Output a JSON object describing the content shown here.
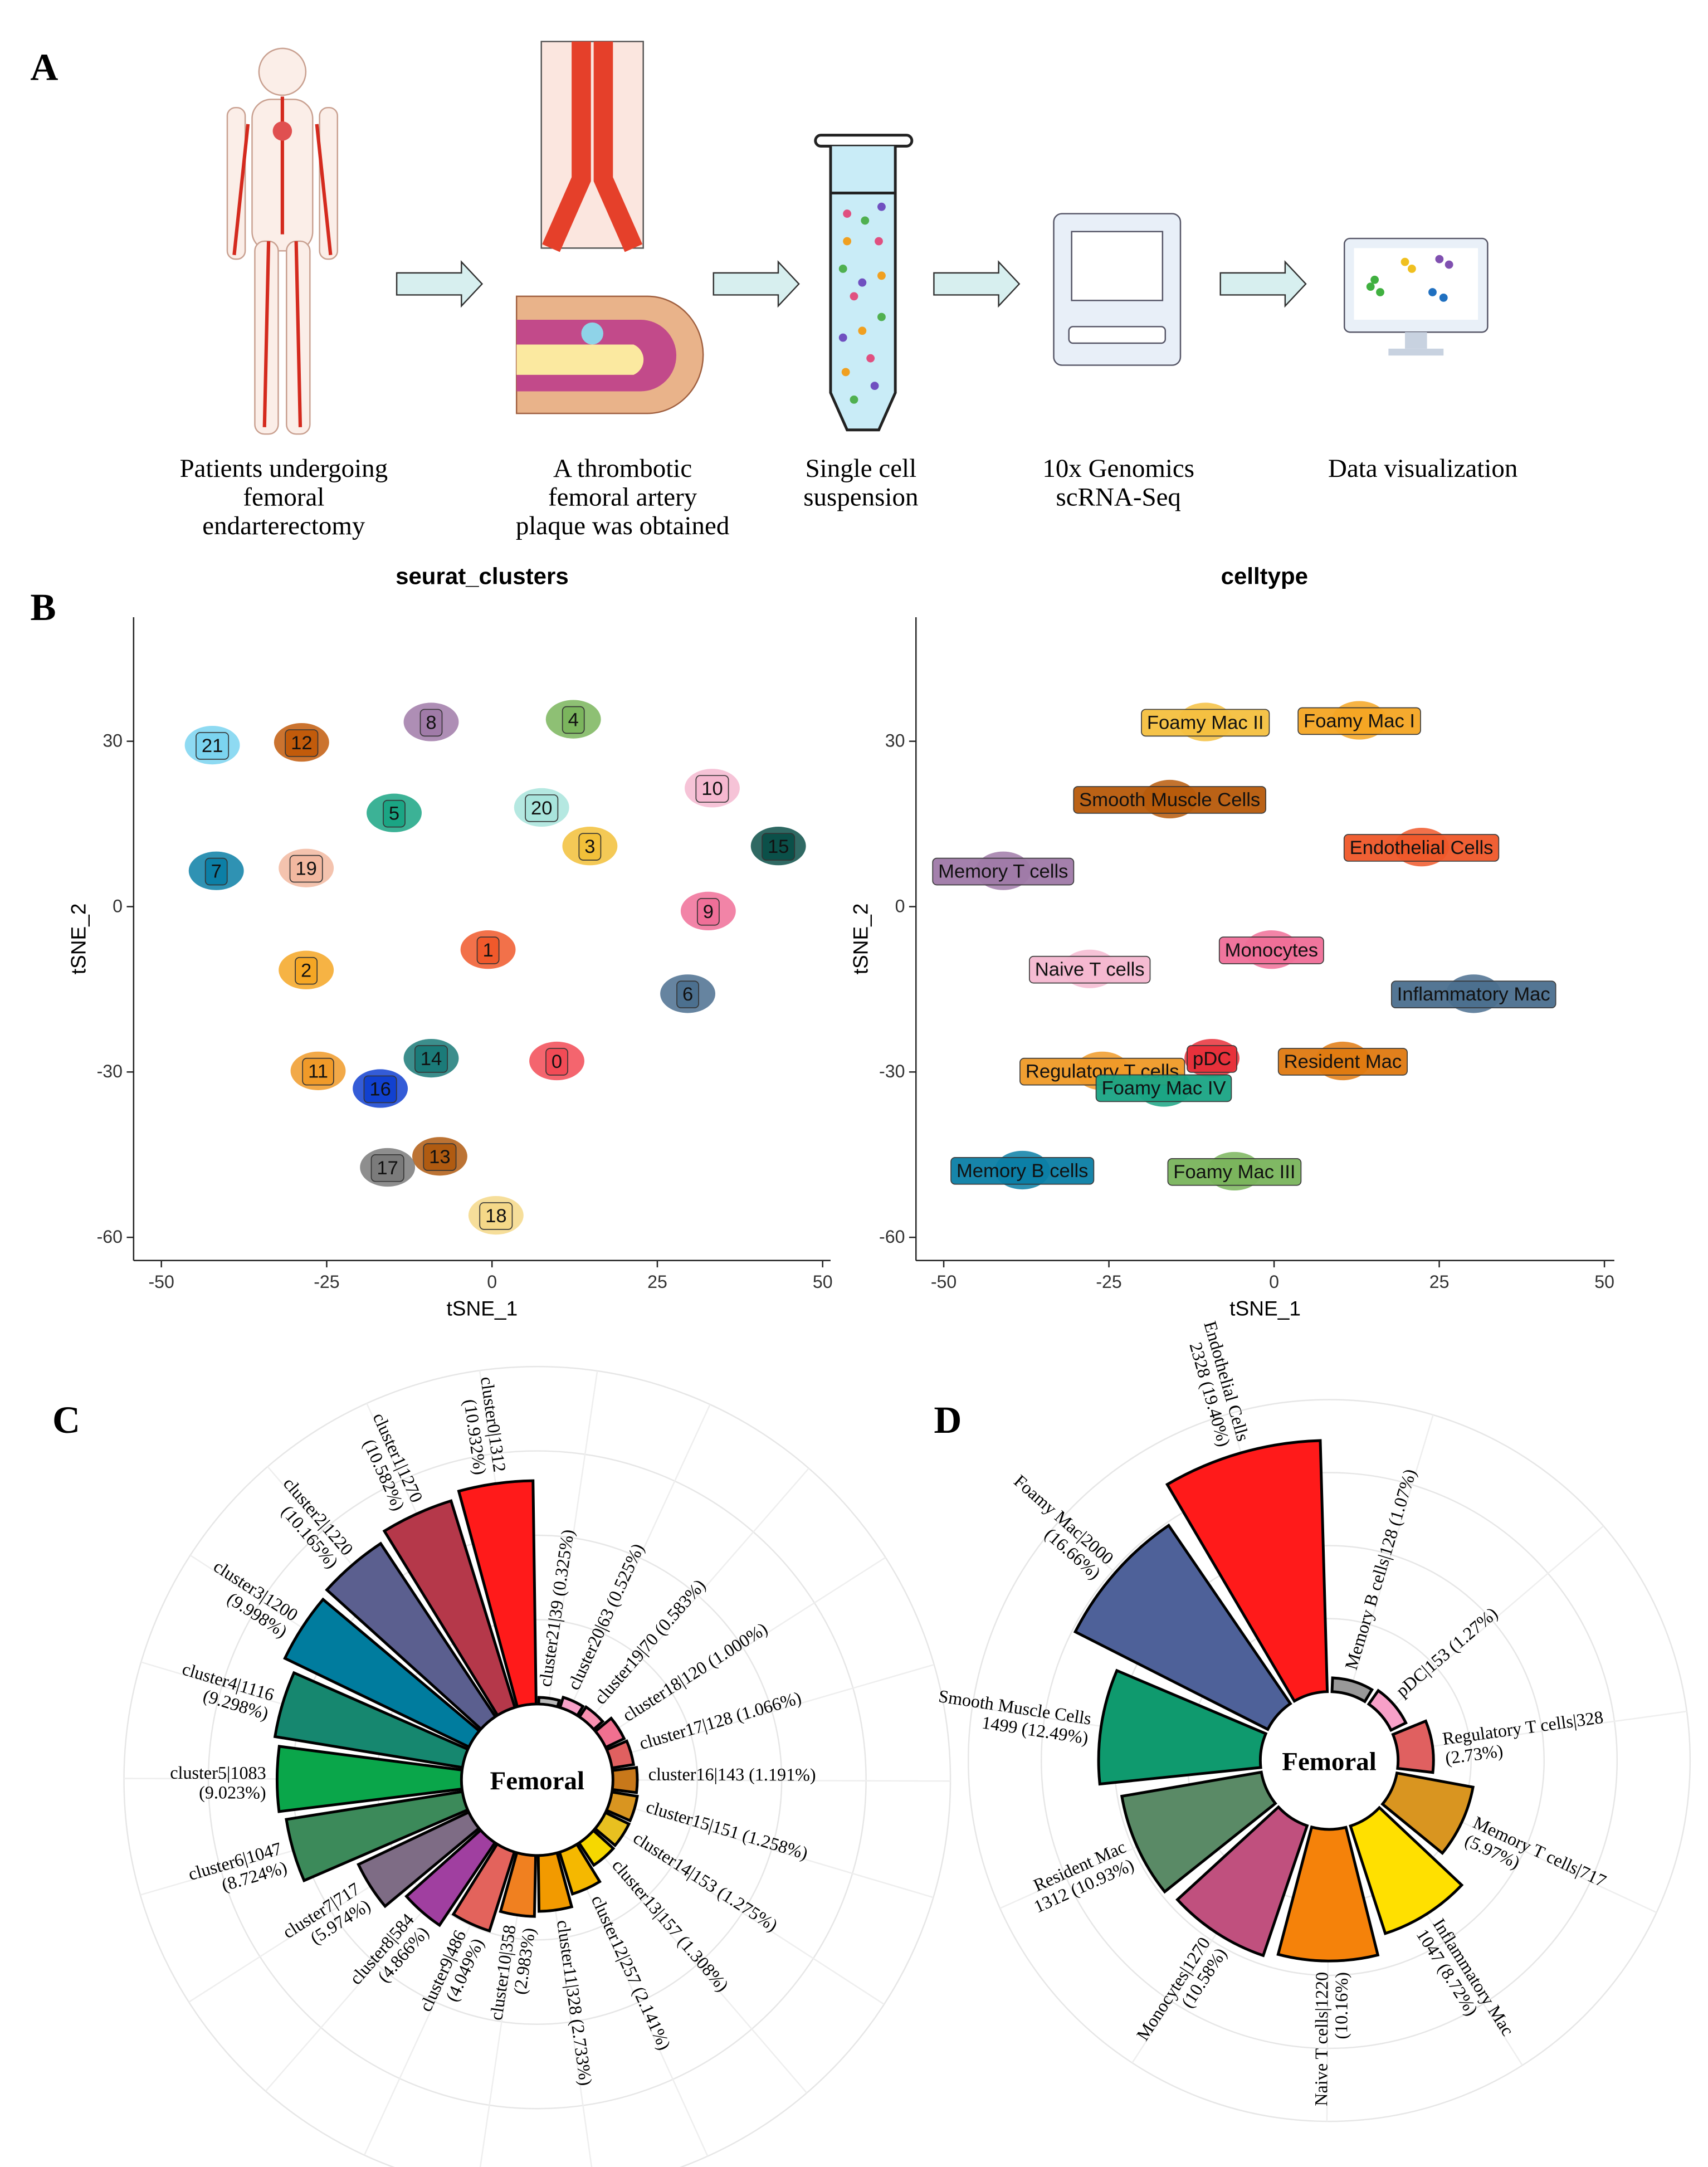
{
  "panel_labels": [
    "A",
    "B",
    "C",
    "D"
  ],
  "workflow": {
    "steps": [
      "Patients undergoing\nfemoral\nendarterectomy",
      "A thrombotic\nfemoral artery\nplaque was obtained",
      "Single cell\nsuspension",
      "10x Genomics\nscRNA-Seq",
      "Data visualization"
    ]
  },
  "chart_data": [
    {
      "type": "scatter",
      "title": "seurat_clusters",
      "x_label": "tSNE_1",
      "y_label": "tSNE_2",
      "xlim": [
        -54.2,
        51.2
      ],
      "ylim": [
        -64.2,
        52.5
      ],
      "xticks": [
        -50,
        -25,
        0,
        25,
        50
      ],
      "yticks": [
        -60,
        -30,
        0,
        30
      ],
      "categories": [
        "0",
        "1",
        "2",
        "3",
        "4",
        "5",
        "6",
        "7",
        "8",
        "9",
        "10",
        "11",
        "12",
        "13",
        "14",
        "15",
        "16",
        "17",
        "18",
        "19",
        "20",
        "21"
      ],
      "x": [
        9.8,
        -0.6,
        -28.1,
        14.8,
        12.3,
        -14.8,
        29.6,
        -41.7,
        -9.2,
        32.7,
        33.3,
        -26.3,
        -28.8,
        -7.9,
        -9.2,
        43.3,
        -16.9,
        -15.8,
        0.6,
        -28.1,
        7.5,
        -42.3
      ],
      "y": [
        -28,
        -7.8,
        -11.5,
        11,
        34,
        17,
        -15.8,
        6.5,
        33.5,
        -0.8,
        21.5,
        -29.8,
        29.8,
        -45.3,
        -27.5,
        11,
        -33,
        -47.3,
        -56,
        7,
        18,
        29.3
      ],
      "colors": [
        "#f24a55",
        "#f0582a",
        "#f5a623",
        "#f2c038",
        "#7ab55c",
        "#1aa584",
        "#4b6f8f",
        "#0b7fa6",
        "#a07aa8",
        "#f06e98",
        "#f5b8d0",
        "#f09a28",
        "#c25a0a",
        "#b05a10",
        "#1a7a78",
        "#0a4f48",
        "#1040d0",
        "#7a7a7a",
        "#f5d888",
        "#f2b8a0",
        "#a8e4dc",
        "#7ad4f0"
      ]
    },
    {
      "type": "scatter",
      "title": "celltype",
      "x_label": "tSNE_1",
      "y_label": "tSNE_2",
      "xlim": [
        -54.2,
        51.5
      ],
      "ylim": [
        -64.2,
        52.5
      ],
      "xticks": [
        -50,
        -25,
        0,
        25,
        50
      ],
      "yticks": [
        -60,
        -30,
        0,
        30
      ],
      "categories": [
        "Foamy Mac II",
        "Foamy Mac I",
        "Smooth Muscle Cells",
        "Endothelial Cells",
        "Memory T cells",
        "Monocytes",
        "Naive T cells",
        "Inflammatory Mac",
        "pDC",
        "Resident Mac",
        "Regulatory T cells",
        "Foamy Mac IV",
        "Memory B cells",
        "Foamy Mac III"
      ],
      "x": [
        -10.4,
        12.9,
        -15.8,
        22.3,
        -41,
        -0.4,
        -27.9,
        30.2,
        -9.4,
        10.4,
        -26,
        -16.7,
        -38.1,
        -6
      ],
      "y": [
        33.5,
        33.8,
        19.5,
        10.8,
        6.5,
        -7.8,
        -11.3,
        -15.8,
        -27.5,
        -28,
        -29.8,
        -32.8,
        -47.8,
        -48
      ],
      "colors": [
        "#f5c040",
        "#f5a623",
        "#b85a0a",
        "#f0582a",
        "#a07aa8",
        "#f06e98",
        "#f5b8d0",
        "#4b6f8f",
        "#e8303a",
        "#e07a10",
        "#f09a28",
        "#1aa584",
        "#0b7fa6",
        "#7ab55c"
      ]
    },
    {
      "type": "rose",
      "center_label": "Femoral",
      "rlim": [
        0,
        1400
      ],
      "categories": [
        "cluster0|1312\n(10.932%)",
        "cluster1|1270\n(10.582%)",
        "cluster2|1220\n(10.165%)",
        "cluster3|1200\n(9.998%)",
        "cluster4|1116\n(9.298%)",
        "cluster5|1083\n(9.023%)",
        "cluster6|1047\n(8.724%)",
        "cluster7|717\n(5.974%)",
        "cluster8|584\n(4.866%)",
        "cluster9|486\n(4.049%)",
        "cluster10|358\n(2.983%)",
        "cluster11|328 (2.733%)",
        "cluster12|257 (2.141%)",
        "cluster13|157 (1.308%)",
        "cluster14|153 (1.275%)",
        "cluster15|151 (1.258%)",
        "cluster16|143 (1.191%)",
        "cluster17|128 (1.066%)",
        "cluster18|120 (1.000%)",
        "cluster19|70 (0.583%)",
        "cluster20|63 (0.525%)",
        "cluster21|39 (0.325%)"
      ],
      "values": [
        1312,
        1270,
        1220,
        1200,
        1116,
        1083,
        1047,
        717,
        584,
        486,
        358,
        328,
        257,
        157,
        153,
        151,
        143,
        128,
        120,
        70,
        63,
        39
      ],
      "colors": [
        "#ff1a1a",
        "#b5384a",
        "#5b5f8f",
        "#007c9e",
        "#16876f",
        "#0aa64a",
        "#3c8a5a",
        "#7e6c85",
        "#a03fa0",
        "#e3635c",
        "#f08020",
        "#f29a00",
        "#f5b800",
        "#f6d800",
        "#e8c020",
        "#d99520",
        "#c8781a",
        "#e06060",
        "#f07090",
        "#f790b0",
        "#f7a0c8",
        "#bbbbbb"
      ]
    },
    {
      "type": "rose",
      "center_label": "Femoral",
      "rlim": [
        0,
        2400
      ],
      "categories": [
        "Endothelial Cells\n2328 (19.40%)",
        "Foamy Mac|2000\n(16.66%)",
        "Smooth Muscle Cells\n1499 (12.49%)",
        "Resident Mac\n1312 (10.93%)",
        "Monocytes|1270\n(10.58%)",
        "Naive T cells|1220\n(10.16%)",
        "Inflammatory Mac\n1047 (8.72%)",
        "Memory T cells|717\n(5.97%)",
        "Regulatory T cells|328\n(2.73%)",
        "pDC|153 (1.27%)",
        "Memory B cells|128 (1.07%)"
      ],
      "values": [
        2328,
        2000,
        1499,
        1312,
        1270,
        1220,
        1047,
        717,
        328,
        153,
        128
      ],
      "colors": [
        "#ff1a1a",
        "#4e6199",
        "#0f9a6e",
        "#5a8a66",
        "#c0507e",
        "#f5820a",
        "#ffe000",
        "#d99520",
        "#e06060",
        "#f7a0c8",
        "#999999"
      ]
    }
  ]
}
